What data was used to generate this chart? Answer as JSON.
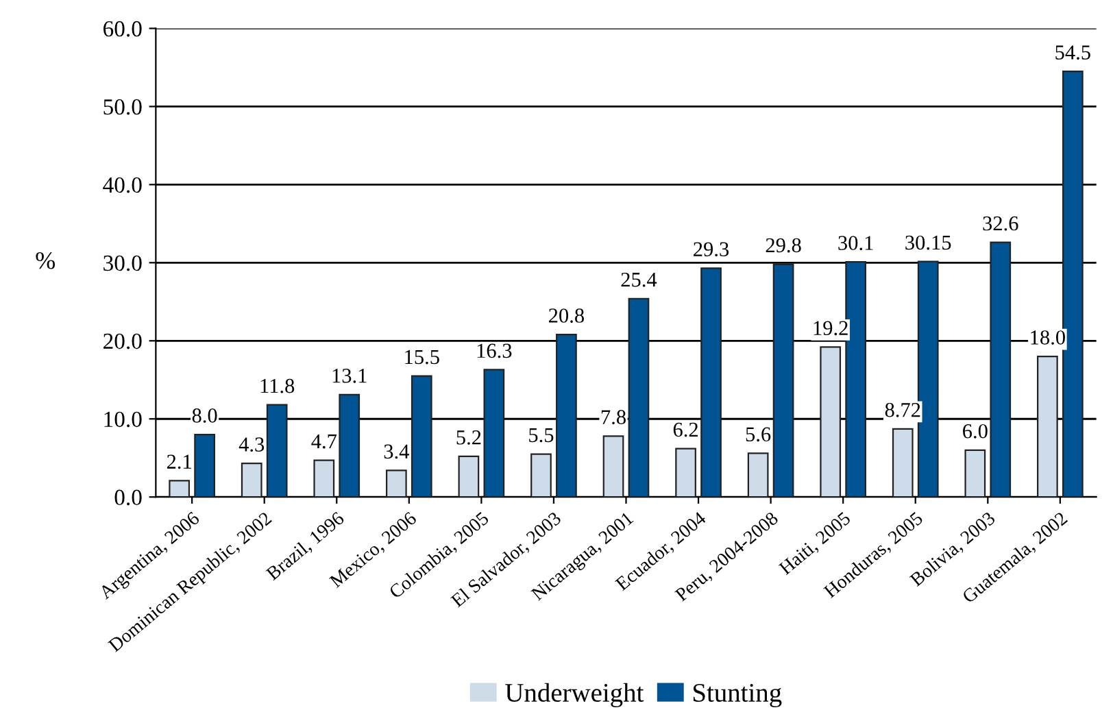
{
  "chart_data": {
    "type": "bar",
    "ylabel": "%",
    "categories": [
      "Argentina, 2006",
      "Dominican Republic, 2002",
      "Brazil, 1996",
      "Mexico, 2006",
      "Colombia, 2005",
      "El Salvador, 2003",
      "Nicaragua, 2001",
      "Ecuador, 2004",
      "Peru, 2004-2008",
      "Haiti, 2005",
      "Honduras, 2005",
      "Bolivia, 2003",
      "Guatemala, 2002"
    ],
    "series": [
      {
        "name": "Underweight",
        "color": "#cddce8",
        "values": [
          2.1,
          4.3,
          4.7,
          3.4,
          5.2,
          5.5,
          7.8,
          6.2,
          5.6,
          19.2,
          8.72,
          6.0,
          18.0
        ],
        "value_labels": [
          "2.1",
          "4.3",
          "4.7",
          "3.4",
          "5.2",
          "5.5",
          "7.8",
          "6.2",
          "5.6",
          "19.2",
          "8.72",
          "6.0",
          "18.0"
        ]
      },
      {
        "name": "Stunting",
        "color": "#005493",
        "values": [
          8.0,
          11.8,
          13.1,
          15.5,
          16.3,
          20.8,
          25.4,
          29.3,
          29.8,
          30.1,
          30.15,
          32.6,
          54.5
        ],
        "value_labels": [
          "8.0",
          "11.8",
          "13.1",
          "15.5",
          "16.3",
          "20.8",
          "25.4",
          "29.3",
          "29.8",
          "30.1",
          "30.15",
          "32.6",
          "54.5"
        ]
      }
    ],
    "ylim": [
      0,
      60
    ],
    "yticks": [
      {
        "value": 0,
        "label": "0.0"
      },
      {
        "value": 10,
        "label": "10.0"
      },
      {
        "value": 20,
        "label": "20.0"
      },
      {
        "value": 30,
        "label": "30.0"
      },
      {
        "value": 40,
        "label": "40.0"
      },
      {
        "value": 50,
        "label": "50.0"
      },
      {
        "value": 60,
        "label": "60.0"
      }
    ],
    "grid": "y",
    "legend": "bottom"
  }
}
